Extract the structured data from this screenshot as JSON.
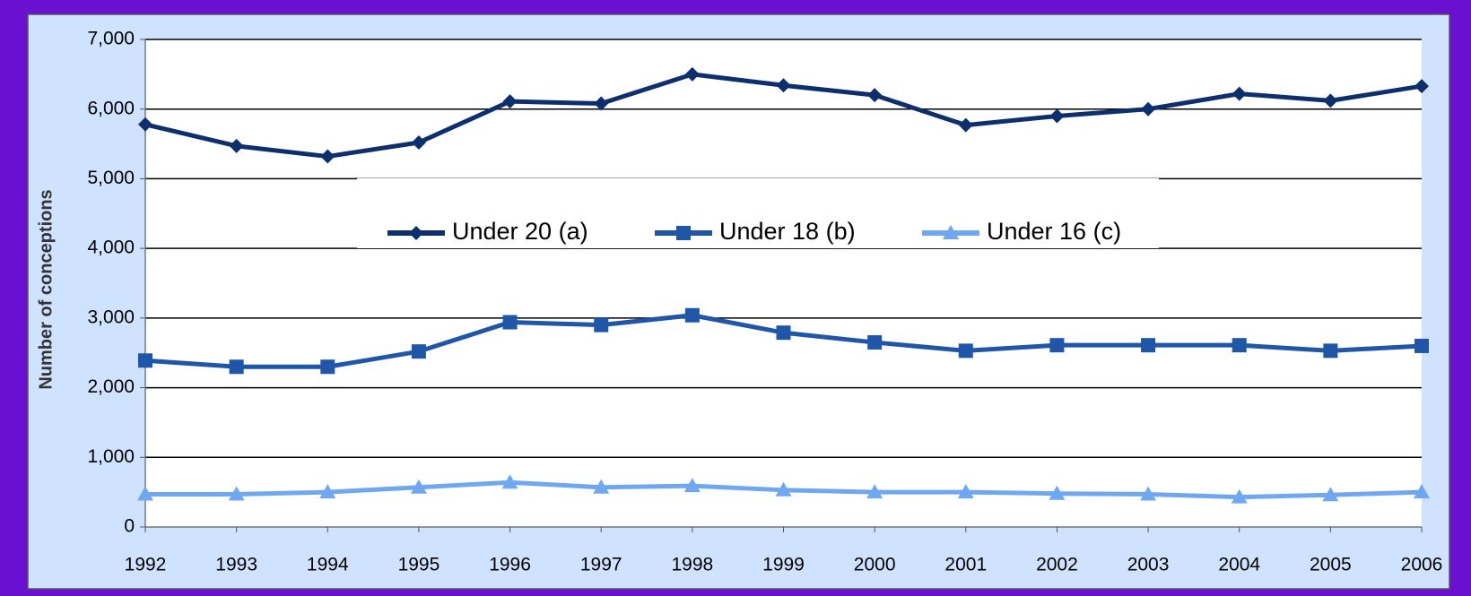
{
  "chart_data": {
    "type": "line",
    "y_label": "Number of conceptions",
    "categories": [
      "1992",
      "1993",
      "1994",
      "1995",
      "1996",
      "1997",
      "1998",
      "1999",
      "2000",
      "2001",
      "2002",
      "2003",
      "2004",
      "2005",
      "2006"
    ],
    "series": [
      {
        "name": "Under 20 (a)",
        "color": "#0d2f6e",
        "marker": "diamond",
        "values": [
          5780,
          5470,
          5320,
          5520,
          6110,
          6080,
          6500,
          6340,
          6200,
          5770,
          5900,
          6000,
          6220,
          6120,
          6330
        ]
      },
      {
        "name": "Under 18 (b)",
        "color": "#1f56a8",
        "marker": "square",
        "values": [
          2390,
          2300,
          2300,
          2520,
          2940,
          2900,
          3040,
          2790,
          2650,
          2530,
          2610,
          2610,
          2610,
          2530,
          2600
        ]
      },
      {
        "name": "Under 16 (c)",
        "color": "#6fa8f0",
        "marker": "triangle",
        "values": [
          470,
          470,
          500,
          570,
          640,
          570,
          590,
          530,
          500,
          500,
          480,
          470,
          430,
          460,
          500
        ]
      }
    ],
    "ylim": [
      0,
      7000
    ],
    "yticks": [
      0,
      {
        "value": 1000,
        "label": "1,000"
      },
      {
        "value": 2000,
        "label": "2,000"
      },
      {
        "value": 3000,
        "label": "3,000"
      },
      {
        "value": 4000,
        "label": "4,000"
      },
      {
        "value": 5000,
        "label": "5,000"
      },
      {
        "value": 6000,
        "label": "6,000"
      },
      {
        "value": 7000,
        "label": "7,000"
      }
    ],
    "grid": true,
    "legend": "center"
  }
}
